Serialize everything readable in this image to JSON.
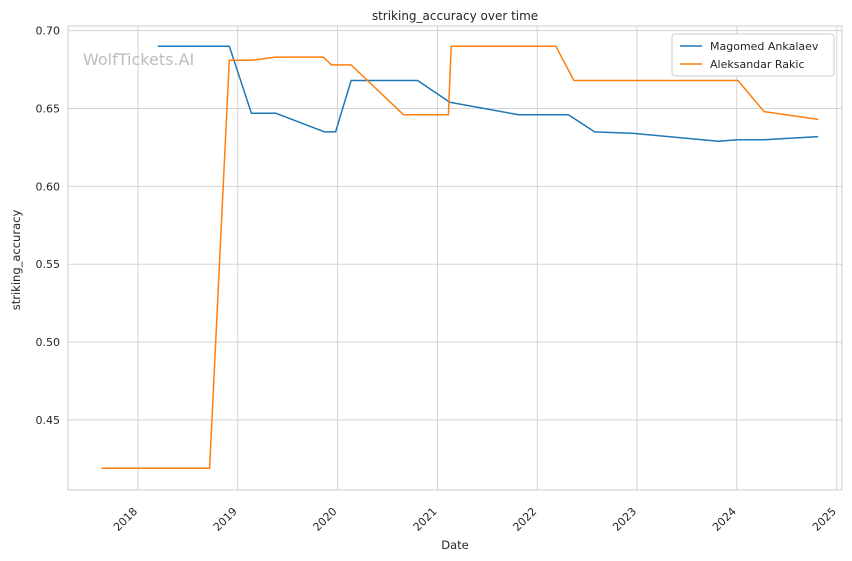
{
  "chart_data": {
    "type": "line",
    "title": "striking_accuracy over time",
    "xlabel": "Date",
    "ylabel": "striking_accuracy",
    "x_axis_type": "date",
    "xlim": [
      "2017-04-20",
      "2025-01-20"
    ],
    "ylim": [
      0.405,
      0.703
    ],
    "xticks": [
      "2018",
      "2019",
      "2020",
      "2021",
      "2022",
      "2023",
      "2024",
      "2025"
    ],
    "yticks": [
      0.45,
      0.5,
      0.55,
      0.6,
      0.65,
      0.7
    ],
    "ytick_labels": [
      "0.45",
      "0.50",
      "0.55",
      "0.60",
      "0.65",
      "0.70"
    ],
    "grid": true,
    "legend_position": "top-right",
    "watermark": "WolfTickets.AI",
    "series": [
      {
        "name": "Magomed Ankalaev",
        "color": "#1f77b4",
        "points": [
          {
            "x": "2018-03-15",
            "y": 0.69
          },
          {
            "x": "2018-12-01",
            "y": 0.69
          },
          {
            "x": "2019-02-20",
            "y": 0.647
          },
          {
            "x": "2019-05-20",
            "y": 0.647
          },
          {
            "x": "2019-11-15",
            "y": 0.635
          },
          {
            "x": "2019-12-25",
            "y": 0.635
          },
          {
            "x": "2020-02-20",
            "y": 0.668
          },
          {
            "x": "2020-10-20",
            "y": 0.668
          },
          {
            "x": "2021-02-15",
            "y": 0.654
          },
          {
            "x": "2021-10-25",
            "y": 0.646
          },
          {
            "x": "2022-04-25",
            "y": 0.646
          },
          {
            "x": "2022-07-30",
            "y": 0.635
          },
          {
            "x": "2022-12-20",
            "y": 0.634
          },
          {
            "x": "2023-10-25",
            "y": 0.629
          },
          {
            "x": "2024-01-05",
            "y": 0.63
          },
          {
            "x": "2024-04-10",
            "y": 0.63
          },
          {
            "x": "2024-10-25",
            "y": 0.632
          }
        ]
      },
      {
        "name": "Aleksandar Rakic",
        "color": "#ff7f0e",
        "points": [
          {
            "x": "2017-08-20",
            "y": 0.419
          },
          {
            "x": "2018-09-20",
            "y": 0.419
          },
          {
            "x": "2018-12-01",
            "y": 0.681
          },
          {
            "x": "2019-02-20",
            "y": 0.681
          },
          {
            "x": "2019-05-20",
            "y": 0.683
          },
          {
            "x": "2019-11-10",
            "y": 0.683
          },
          {
            "x": "2019-12-10",
            "y": 0.678
          },
          {
            "x": "2020-02-20",
            "y": 0.678
          },
          {
            "x": "2020-08-30",
            "y": 0.646
          },
          {
            "x": "2021-02-10",
            "y": 0.646
          },
          {
            "x": "2021-02-20",
            "y": 0.69
          },
          {
            "x": "2022-03-10",
            "y": 0.69
          },
          {
            "x": "2022-05-15",
            "y": 0.668
          },
          {
            "x": "2024-01-05",
            "y": 0.668
          },
          {
            "x": "2024-04-10",
            "y": 0.648
          },
          {
            "x": "2024-10-25",
            "y": 0.643
          }
        ]
      }
    ]
  }
}
